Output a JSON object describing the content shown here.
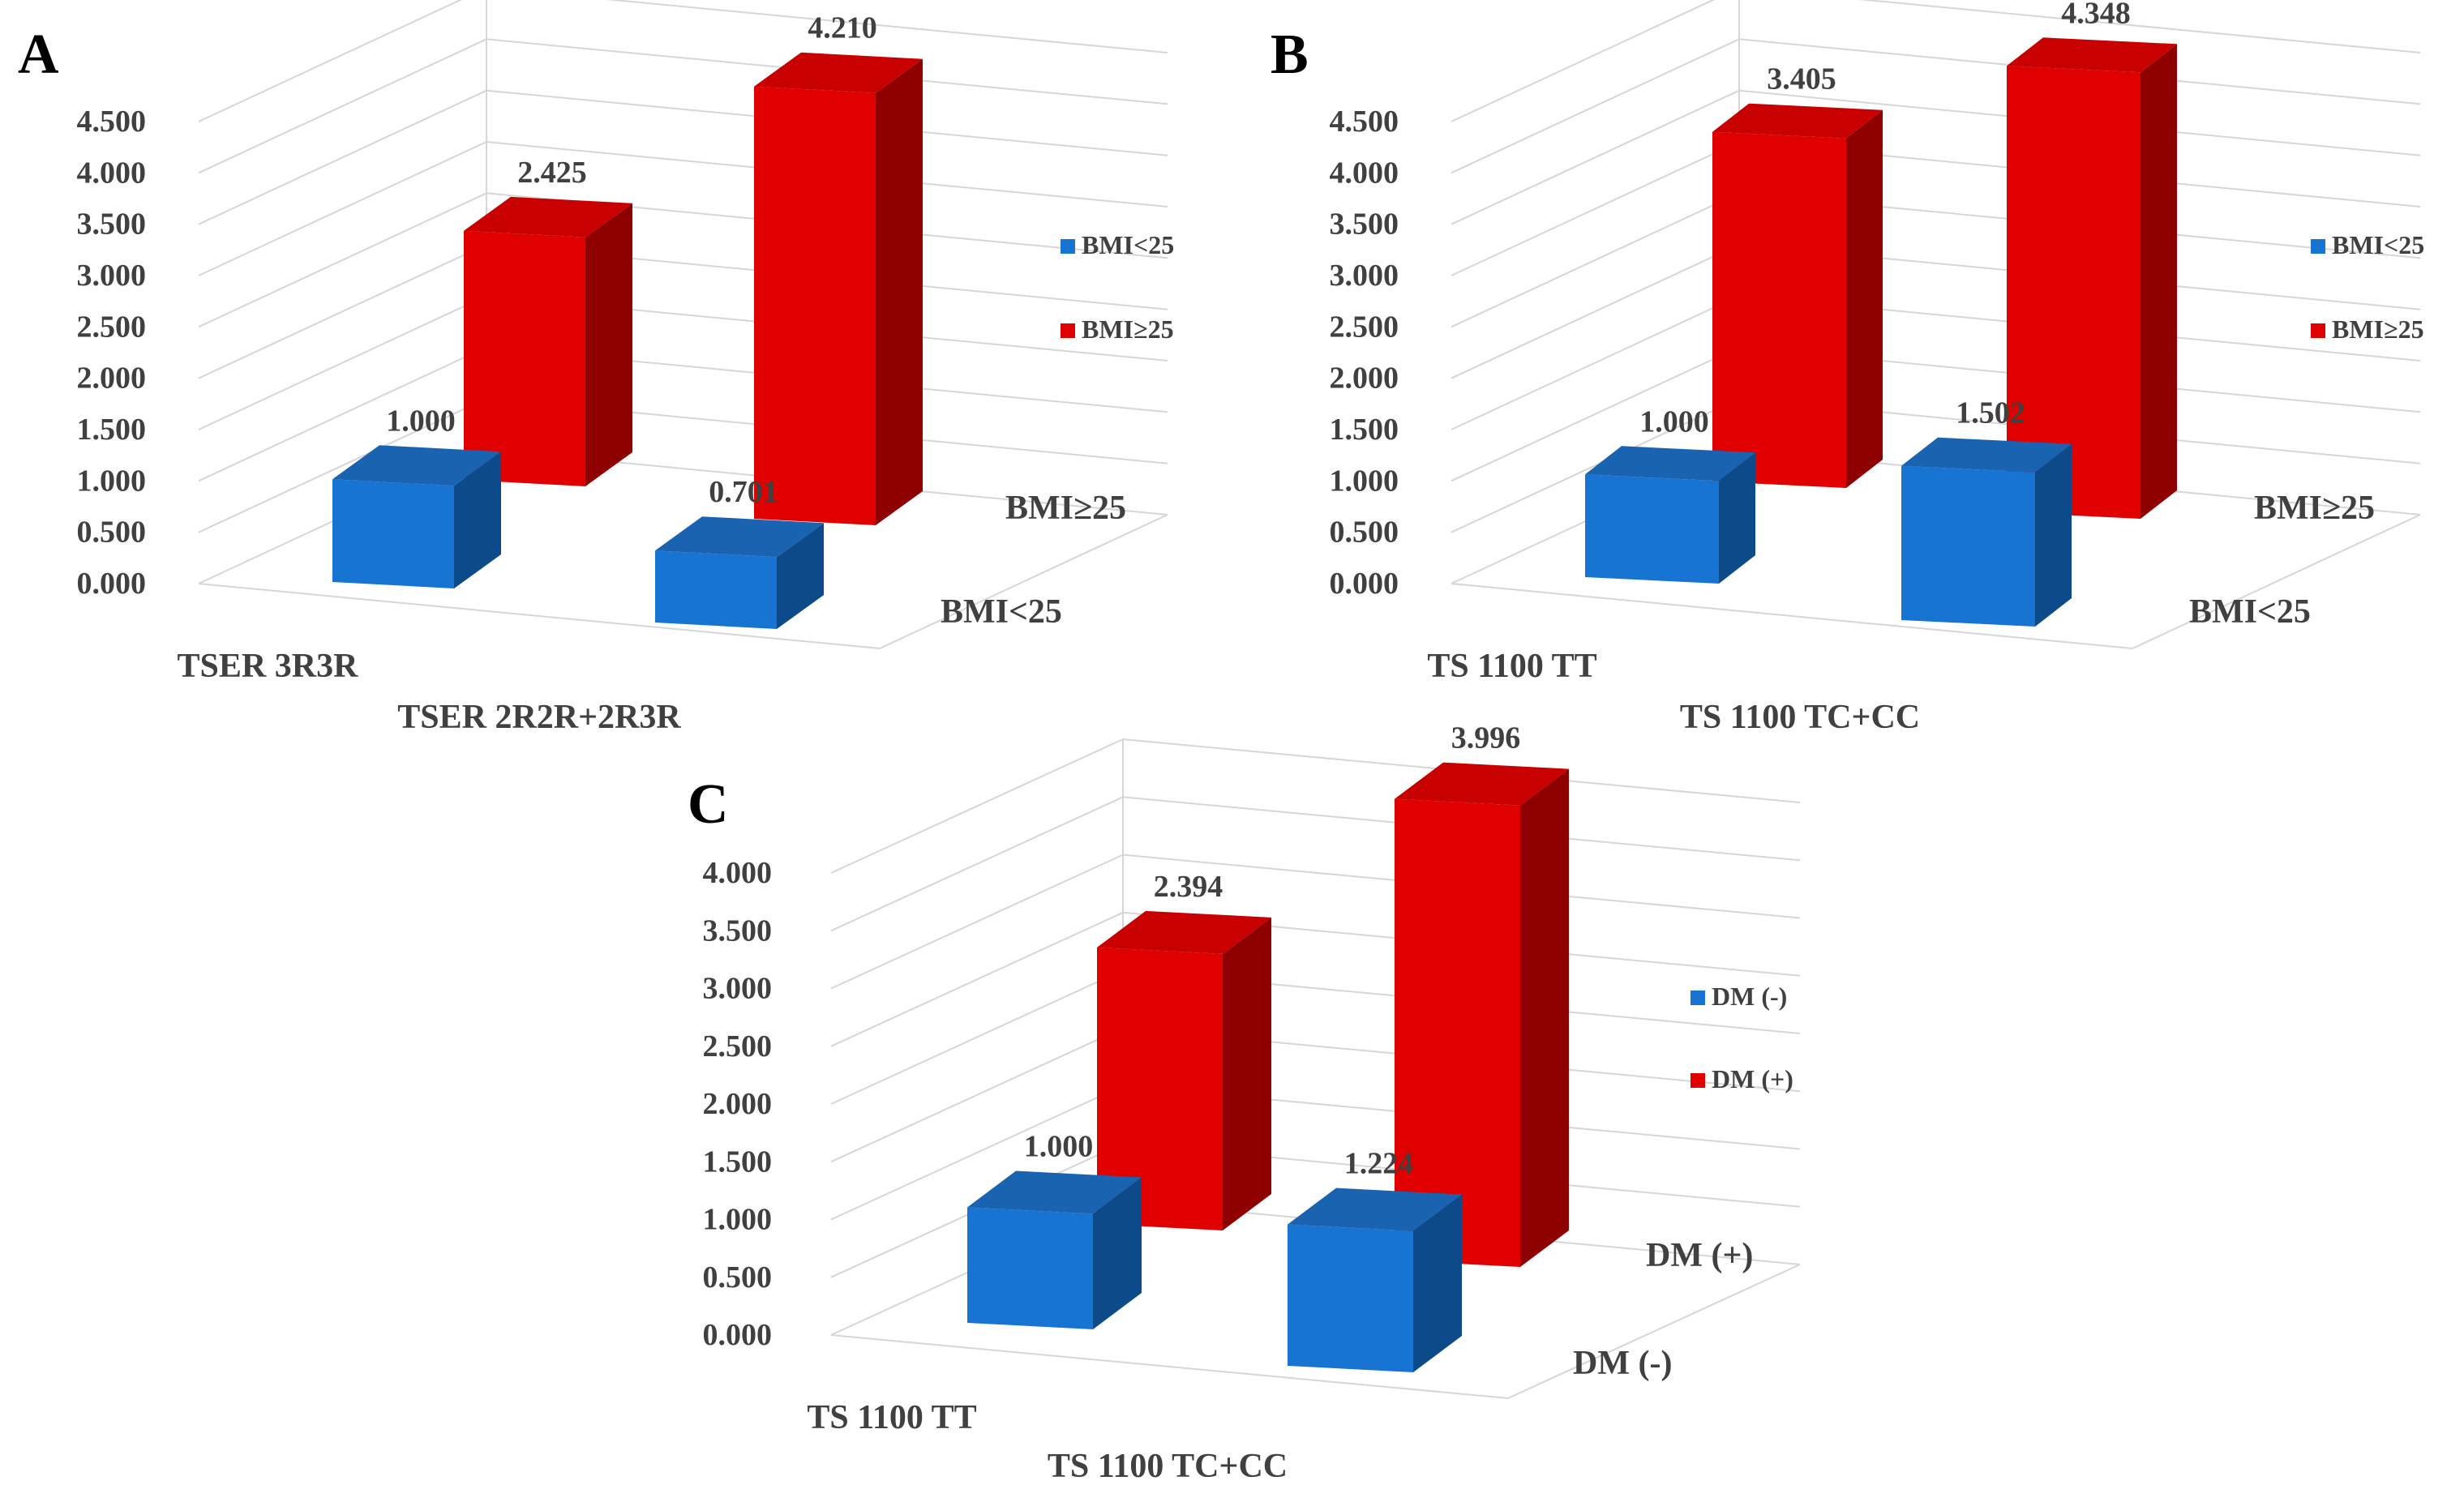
{
  "colors": {
    "blue_front": "#1874d2",
    "blue_side": "#0d4a8a",
    "blue_top": "#1a63b0",
    "red_front": "#e00000",
    "red_side": "#8e0000",
    "red_top": "#c80000",
    "grid": "#d6d6d6",
    "text": "#404040"
  },
  "chart_data": [
    {
      "panel": "A",
      "type": "bar",
      "style": "3d-clustered-column",
      "categories": [
        "TSER 3R3R",
        "TSER 2R2R+2R3R"
      ],
      "depth_labels": [
        "BMI<25",
        "BMI≥25"
      ],
      "series": [
        {
          "name": "BMI<25",
          "values": [
            1.0,
            0.701
          ],
          "value_labels": [
            "1.000",
            "0.701"
          ]
        },
        {
          "name": "BMI≥25",
          "values": [
            2.425,
            4.21
          ],
          "value_labels": [
            "2.425",
            "4.210"
          ]
        }
      ],
      "ylim": [
        0,
        4.5
      ],
      "yticks": [
        "0.000",
        "0.500",
        "1.000",
        "1.500",
        "2.000",
        "2.500",
        "3.000",
        "3.500",
        "4.000",
        "4.500"
      ],
      "legend": "right",
      "grid": true
    },
    {
      "panel": "B",
      "type": "bar",
      "style": "3d-clustered-column",
      "categories": [
        "TS 1100 TT",
        "TS 1100 TC+CC"
      ],
      "depth_labels": [
        "BMI<25",
        "BMI≥25"
      ],
      "series": [
        {
          "name": "BMI<25",
          "values": [
            1.0,
            1.502
          ],
          "value_labels": [
            "1.000",
            "1.502"
          ]
        },
        {
          "name": "BMI≥25",
          "values": [
            3.405,
            4.348
          ],
          "value_labels": [
            "3.405",
            "4.348"
          ]
        }
      ],
      "ylim": [
        0,
        4.5
      ],
      "yticks": [
        "0.000",
        "0.500",
        "1.000",
        "1.500",
        "2.000",
        "2.500",
        "3.000",
        "3.500",
        "4.000",
        "4.500"
      ],
      "legend": "right",
      "grid": true
    },
    {
      "panel": "C",
      "type": "bar",
      "style": "3d-clustered-column",
      "categories": [
        "TS 1100 TT",
        "TS 1100 TC+CC"
      ],
      "depth_labels": [
        "DM (-)",
        "DM (+)"
      ],
      "series": [
        {
          "name": "DM (-)",
          "values": [
            1.0,
            1.224
          ],
          "value_labels": [
            "1.000",
            "1.224"
          ]
        },
        {
          "name": "DM (+)",
          "values": [
            2.394,
            3.996
          ],
          "value_labels": [
            "2.394",
            "3.996"
          ]
        }
      ],
      "ylim": [
        0,
        4.0
      ],
      "yticks": [
        "0.000",
        "0.500",
        "1.000",
        "1.500",
        "2.000",
        "2.500",
        "3.000",
        "3.500",
        "4.000"
      ],
      "legend": "right",
      "grid": true
    }
  ]
}
